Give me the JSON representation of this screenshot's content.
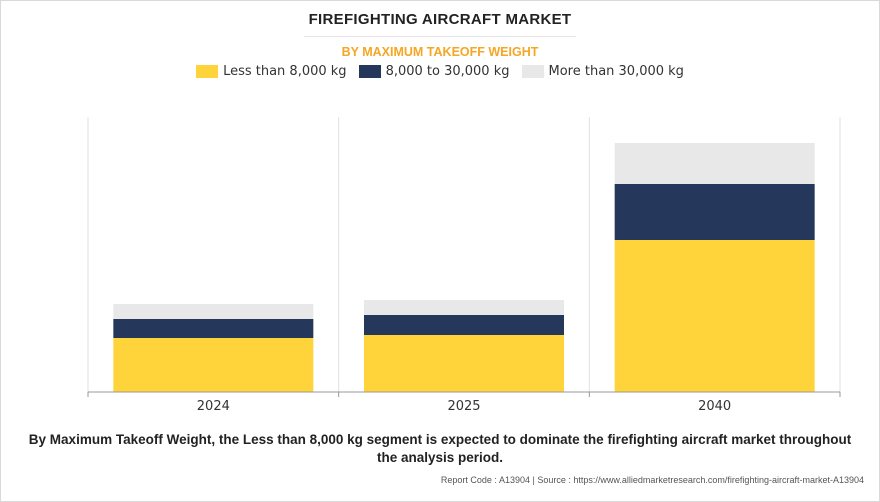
{
  "chart_data": {
    "type": "bar",
    "stacked": true,
    "title": "FIREFIGHTING AIRCRAFT MARKET",
    "subtitle": "BY MAXIMUM TAKEOFF WEIGHT",
    "categories": [
      "2024",
      "2025",
      "2040"
    ],
    "series": [
      {
        "name": "Less than 8,000 kg",
        "color": "#FFD43B",
        "values": [
          54,
          57,
          152
        ]
      },
      {
        "name": "8,000 to 30,000 kg",
        "color": "#25375A",
        "values": [
          19,
          20,
          56
        ]
      },
      {
        "name": "More than 30,000 kg",
        "color": "#E8E8E8",
        "values": [
          15,
          15,
          41
        ]
      }
    ],
    "ylim": [
      0,
      275
    ],
    "grid": false,
    "legend_position": "top"
  },
  "colors": {
    "title": "#222222",
    "subtitle": "#F5A623",
    "axis": "#999999",
    "gridline": "#e0e0e0"
  },
  "caption": "By Maximum Takeoff Weight, the Less than 8,000 kg segment is expected to dominate the firefighting aircraft market throughout the analysis period.",
  "footer": {
    "report_code": "Report Code : A13904",
    "separator": "|",
    "source": "Source : https://www.alliedmarketresearch.com/firefighting-aircraft-market-A13904"
  }
}
